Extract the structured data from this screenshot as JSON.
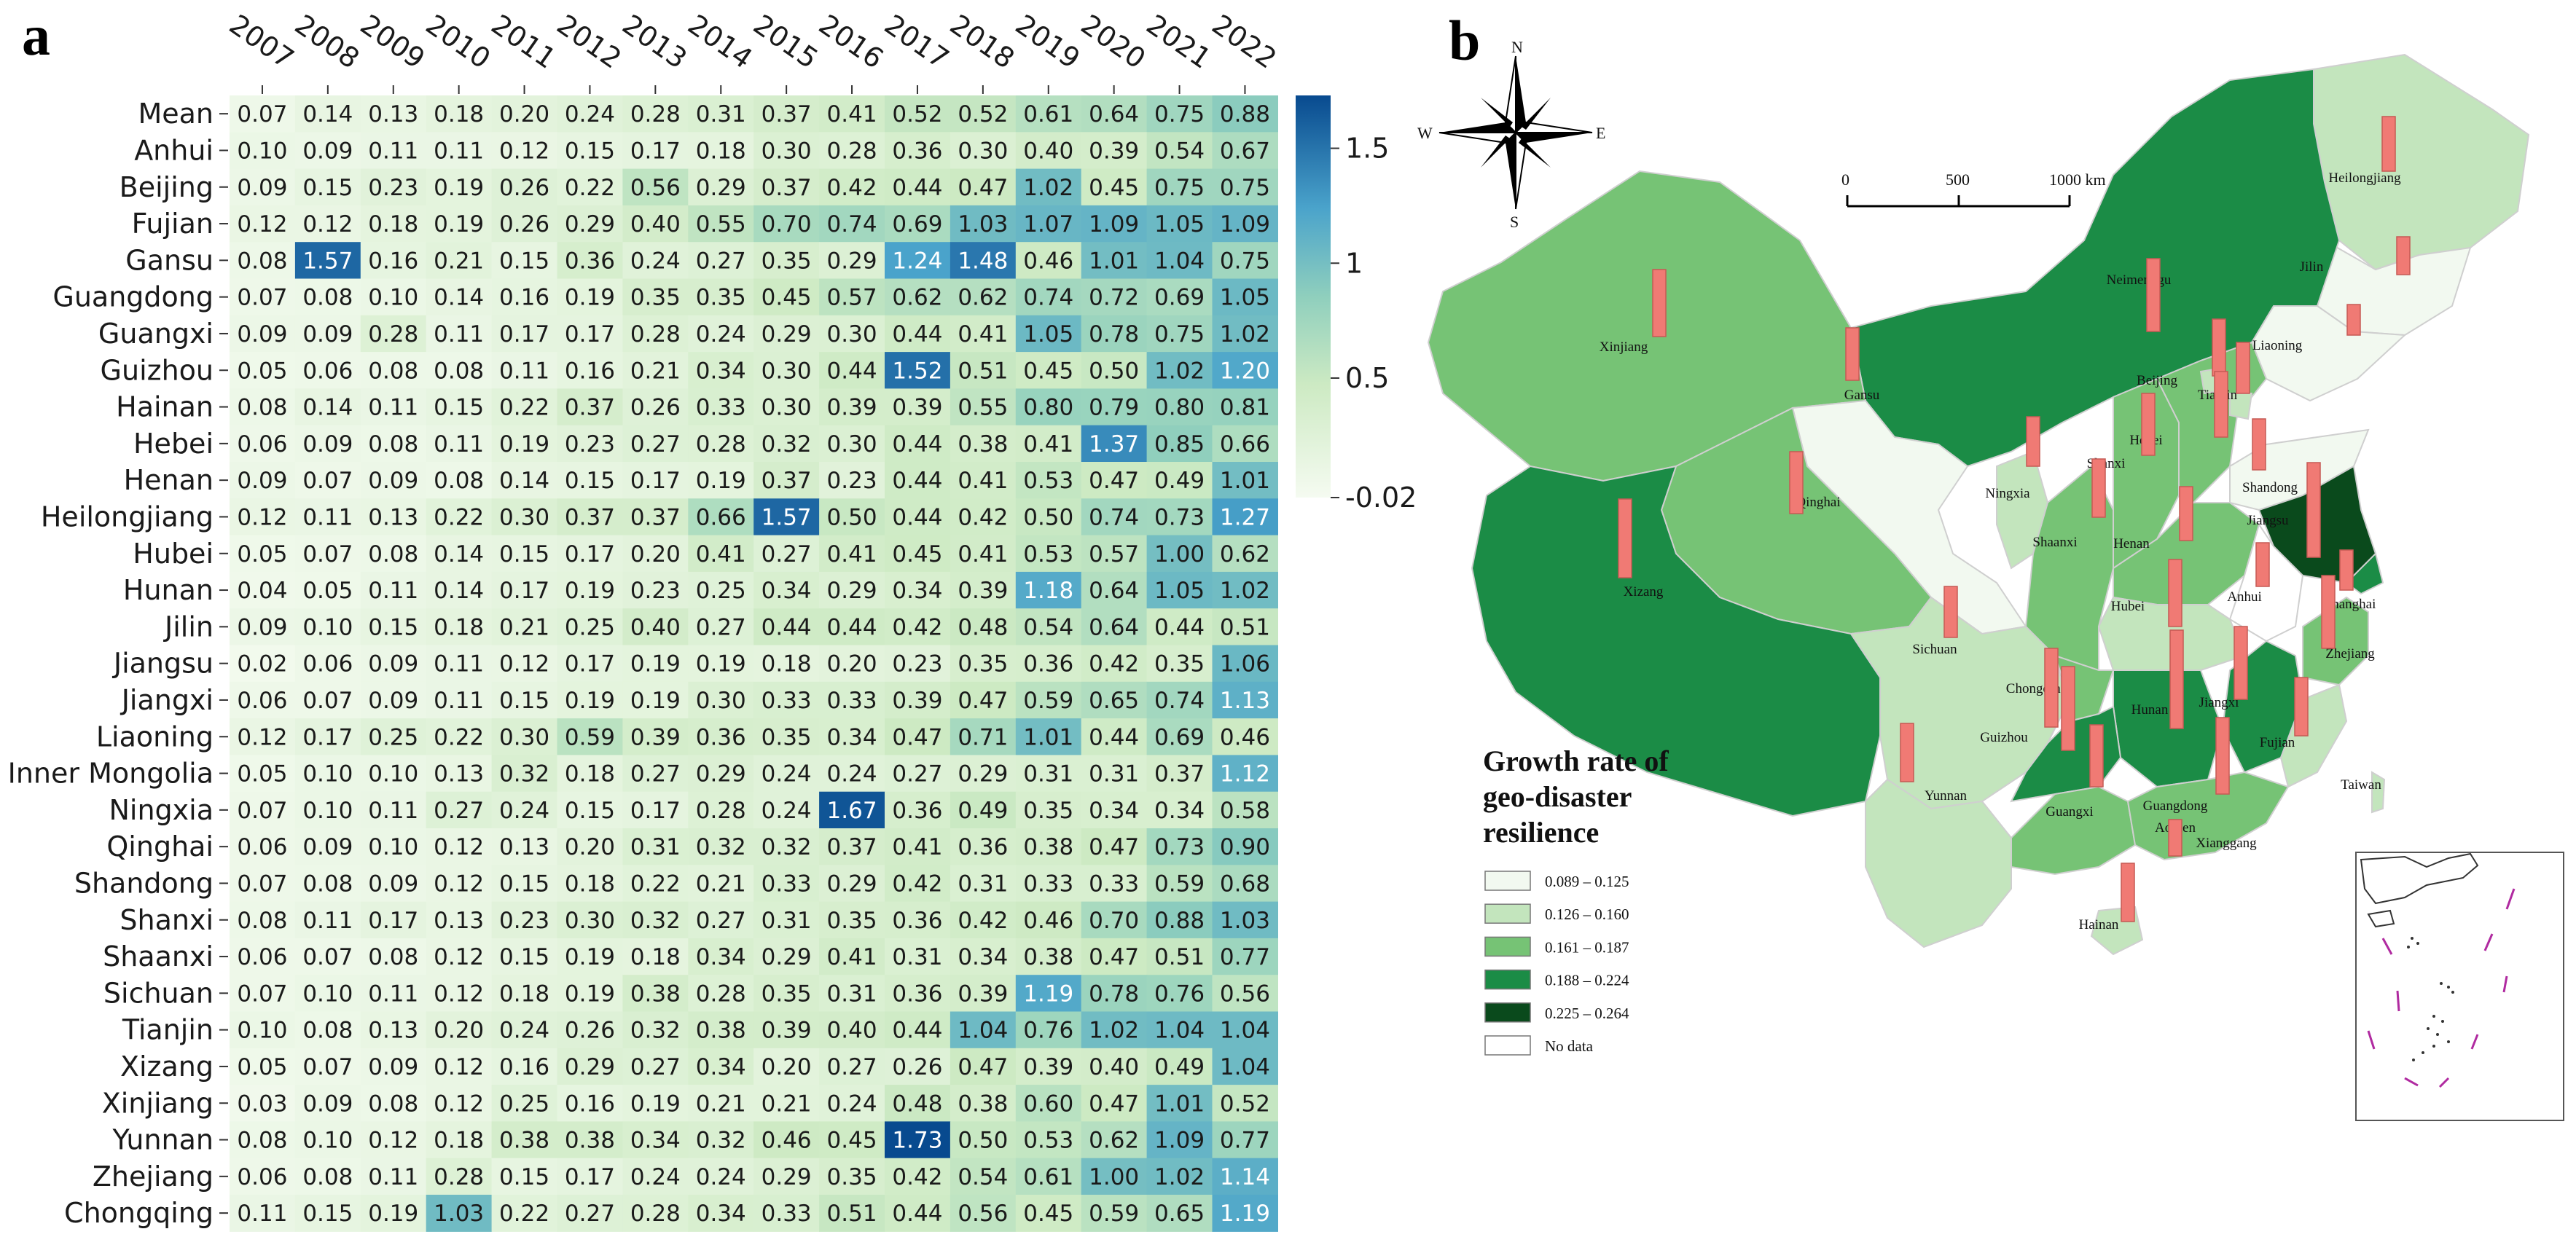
{
  "panel_a": {
    "label": "a"
  },
  "panel_b": {
    "label": "b",
    "compass": {
      "n": "N",
      "s": "S",
      "e": "E",
      "w": "W"
    },
    "scalebar": {
      "t0": "0",
      "t1": "500",
      "t2": "1000 km"
    },
    "legend": {
      "title_lines": [
        "Growth rate of",
        "geo-disaster",
        "resilience"
      ],
      "items": [
        {
          "label": "0.089 – 0.125",
          "color": "#f2f9f0"
        },
        {
          "label": "0.126 – 0.160",
          "color": "#c3e5bd"
        },
        {
          "label": "0.161 – 0.187",
          "color": "#76c375"
        },
        {
          "label": "0.188 – 0.224",
          "color": "#1b8c46"
        },
        {
          "label": "0.225 – 0.264",
          "color": "#0a4a1c"
        },
        {
          "label": "No data",
          "color": "#ffffff"
        }
      ]
    },
    "provinces": [
      {
        "name": "Heilongjiang"
      },
      {
        "name": "Jilin"
      },
      {
        "name": "Liaoning"
      },
      {
        "name": "Neimenggu"
      },
      {
        "name": "Xinjiang"
      },
      {
        "name": "Gansu"
      },
      {
        "name": "Beijing"
      },
      {
        "name": "Tianjin"
      },
      {
        "name": "Hebei"
      },
      {
        "name": "Ningxia"
      },
      {
        "name": "Shanxi"
      },
      {
        "name": "Shandong"
      },
      {
        "name": "Qinghai"
      },
      {
        "name": "Jiangsu"
      },
      {
        "name": "Henan"
      },
      {
        "name": "Shaanxi"
      },
      {
        "name": "Xizang"
      },
      {
        "name": "Anhui"
      },
      {
        "name": "Hubei"
      },
      {
        "name": "Shanghai"
      },
      {
        "name": "Sichuan"
      },
      {
        "name": "Zhejiang"
      },
      {
        "name": "Chongqing"
      },
      {
        "name": "Jiangxi"
      },
      {
        "name": "Hunan"
      },
      {
        "name": "Guizhou"
      },
      {
        "name": "Fujian"
      },
      {
        "name": "Yunnan"
      },
      {
        "name": "Taiwan"
      },
      {
        "name": "Guangxi"
      },
      {
        "name": "Guangdong"
      },
      {
        "name": "Aomen"
      },
      {
        "name": "Xianggang"
      },
      {
        "name": "Hainan"
      }
    ]
  },
  "chart_data": [
    {
      "type": "heatmap",
      "title": "",
      "x": [
        "2007",
        "2008",
        "2009",
        "2010",
        "2011",
        "2012",
        "2013",
        "2014",
        "2015",
        "2016",
        "2017",
        "2018",
        "2019",
        "2020",
        "2021",
        "2022"
      ],
      "y": [
        "Mean",
        "Anhui",
        "Beijing",
        "Fujian",
        "Gansu",
        "Guangdong",
        "Guangxi",
        "Guizhou",
        "Hainan",
        "Hebei",
        "Henan",
        "Heilongjiang",
        "Hubei",
        "Hunan",
        "Jilin",
        "Jiangsu",
        "Jiangxi",
        "Liaoning",
        "Inner Mongolia",
        "Ningxia",
        "Qinghai",
        "Shandong",
        "Shanxi",
        "Shaanxi",
        "Sichuan",
        "Tianjin",
        "Xizang",
        "Xinjiang",
        "Yunnan",
        "Zhejiang",
        "Chongqing"
      ],
      "values": [
        [
          "0.07",
          "0.14",
          "0.13",
          "0.18",
          "0.20",
          "0.24",
          "0.28",
          "0.31",
          "0.37",
          "0.41",
          "0.52",
          "0.52",
          "0.61",
          "0.64",
          "0.75",
          "0.88"
        ],
        [
          "0.10",
          "0.09",
          "0.11",
          "0.11",
          "0.12",
          "0.15",
          "0.17",
          "0.18",
          "0.30",
          "0.28",
          "0.36",
          "0.30",
          "0.40",
          "0.39",
          "0.54",
          "0.67"
        ],
        [
          "0.09",
          "0.15",
          "0.23",
          "0.19",
          "0.26",
          "0.22",
          "0.56",
          "0.29",
          "0.37",
          "0.42",
          "0.44",
          "0.47",
          "1.02",
          "0.45",
          "0.75",
          "0.75"
        ],
        [
          "0.12",
          "0.12",
          "0.18",
          "0.19",
          "0.26",
          "0.29",
          "0.40",
          "0.55",
          "0.70",
          "0.74",
          "0.69",
          "1.03",
          "1.07",
          "1.09",
          "1.05",
          "1.09"
        ],
        [
          "0.08",
          "1.57",
          "0.16",
          "0.21",
          "0.15",
          "0.36",
          "0.24",
          "0.27",
          "0.35",
          "0.29",
          "1.24",
          "1.48",
          "0.46",
          "1.01",
          "1.04",
          "0.75"
        ],
        [
          "0.07",
          "0.08",
          "0.10",
          "0.14",
          "0.16",
          "0.19",
          "0.35",
          "0.35",
          "0.45",
          "0.57",
          "0.62",
          "0.62",
          "0.74",
          "0.72",
          "0.69",
          "1.05"
        ],
        [
          "0.09",
          "0.09",
          "0.28",
          "0.11",
          "0.17",
          "0.17",
          "0.28",
          "0.24",
          "0.29",
          "0.30",
          "0.44",
          "0.41",
          "1.05",
          "0.78",
          "0.75",
          "1.02"
        ],
        [
          "0.05",
          "0.06",
          "0.08",
          "0.08",
          "0.11",
          "0.16",
          "0.21",
          "0.34",
          "0.30",
          "0.44",
          "1.52",
          "0.51",
          "0.45",
          "0.50",
          "1.02",
          "1.20"
        ],
        [
          "0.08",
          "0.14",
          "0.11",
          "0.15",
          "0.22",
          "0.37",
          "0.26",
          "0.33",
          "0.30",
          "0.39",
          "0.39",
          "0.55",
          "0.80",
          "0.79",
          "0.80",
          "0.81"
        ],
        [
          "0.06",
          "0.09",
          "0.08",
          "0.11",
          "0.19",
          "0.23",
          "0.27",
          "0.28",
          "0.32",
          "0.30",
          "0.44",
          "0.38",
          "0.41",
          "1.37",
          "0.85",
          "0.66"
        ],
        [
          "0.09",
          "0.07",
          "0.09",
          "0.08",
          "0.14",
          "0.15",
          "0.17",
          "0.19",
          "0.37",
          "0.23",
          "0.44",
          "0.41",
          "0.53",
          "0.47",
          "0.49",
          "1.01"
        ],
        [
          "0.12",
          "0.11",
          "0.13",
          "0.22",
          "0.30",
          "0.37",
          "0.37",
          "0.66",
          "1.57",
          "0.50",
          "0.44",
          "0.42",
          "0.50",
          "0.74",
          "0.73",
          "1.27"
        ],
        [
          "0.05",
          "0.07",
          "0.08",
          "0.14",
          "0.15",
          "0.17",
          "0.20",
          "0.41",
          "0.27",
          "0.41",
          "0.45",
          "0.41",
          "0.53",
          "0.57",
          "1.00",
          "0.62"
        ],
        [
          "0.04",
          "0.05",
          "0.11",
          "0.14",
          "0.17",
          "0.19",
          "0.23",
          "0.25",
          "0.34",
          "0.29",
          "0.34",
          "0.39",
          "1.18",
          "0.64",
          "1.05",
          "1.02"
        ],
        [
          "0.09",
          "0.10",
          "0.15",
          "0.18",
          "0.21",
          "0.25",
          "0.40",
          "0.27",
          "0.44",
          "0.44",
          "0.42",
          "0.48",
          "0.54",
          "0.64",
          "0.44",
          "0.51"
        ],
        [
          "0.02",
          "0.06",
          "0.09",
          "0.11",
          "0.12",
          "0.17",
          "0.19",
          "0.19",
          "0.18",
          "0.20",
          "0.23",
          "0.35",
          "0.36",
          "0.42",
          "0.35",
          "1.06"
        ],
        [
          "0.06",
          "0.07",
          "0.09",
          "0.11",
          "0.15",
          "0.19",
          "0.19",
          "0.30",
          "0.33",
          "0.33",
          "0.39",
          "0.47",
          "0.59",
          "0.65",
          "0.74",
          "1.13"
        ],
        [
          "0.12",
          "0.17",
          "0.25",
          "0.22",
          "0.30",
          "0.59",
          "0.39",
          "0.36",
          "0.35",
          "0.34",
          "0.47",
          "0.71",
          "1.01",
          "0.44",
          "0.69",
          "0.46"
        ],
        [
          "0.05",
          "0.10",
          "0.10",
          "0.13",
          "0.32",
          "0.18",
          "0.27",
          "0.29",
          "0.24",
          "0.24",
          "0.27",
          "0.29",
          "0.31",
          "0.31",
          "0.37",
          "1.12"
        ],
        [
          "0.07",
          "0.10",
          "0.11",
          "0.27",
          "0.24",
          "0.15",
          "0.17",
          "0.28",
          "0.24",
          "1.67",
          "0.36",
          "0.49",
          "0.35",
          "0.34",
          "0.34",
          "0.58"
        ],
        [
          "0.06",
          "0.09",
          "0.10",
          "0.12",
          "0.13",
          "0.20",
          "0.31",
          "0.32",
          "0.32",
          "0.37",
          "0.41",
          "0.36",
          "0.38",
          "0.47",
          "0.73",
          "0.90"
        ],
        [
          "0.07",
          "0.08",
          "0.09",
          "0.12",
          "0.15",
          "0.18",
          "0.22",
          "0.21",
          "0.33",
          "0.29",
          "0.42",
          "0.31",
          "0.33",
          "0.33",
          "0.59",
          "0.68"
        ],
        [
          "0.08",
          "0.11",
          "0.17",
          "0.13",
          "0.23",
          "0.30",
          "0.32",
          "0.27",
          "0.31",
          "0.35",
          "0.36",
          "0.42",
          "0.46",
          "0.70",
          "0.88",
          "1.03"
        ],
        [
          "0.06",
          "0.07",
          "0.08",
          "0.12",
          "0.15",
          "0.19",
          "0.18",
          "0.34",
          "0.29",
          "0.41",
          "0.31",
          "0.34",
          "0.38",
          "0.47",
          "0.51",
          "0.77"
        ],
        [
          "0.07",
          "0.10",
          "0.11",
          "0.12",
          "0.18",
          "0.19",
          "0.38",
          "0.28",
          "0.35",
          "0.31",
          "0.36",
          "0.39",
          "1.19",
          "0.78",
          "0.76",
          "0.56"
        ],
        [
          "0.10",
          "0.08",
          "0.13",
          "0.20",
          "0.24",
          "0.26",
          "0.32",
          "0.38",
          "0.39",
          "0.40",
          "0.44",
          "1.04",
          "0.76",
          "1.02",
          "1.04",
          "1.04"
        ],
        [
          "0.05",
          "0.07",
          "0.09",
          "0.12",
          "0.16",
          "0.29",
          "0.27",
          "0.34",
          "0.20",
          "0.27",
          "0.26",
          "0.47",
          "0.39",
          "0.40",
          "0.49",
          "1.04"
        ],
        [
          "0.03",
          "0.09",
          "0.08",
          "0.12",
          "0.25",
          "0.16",
          "0.19",
          "0.21",
          "0.21",
          "0.24",
          "0.48",
          "0.38",
          "0.60",
          "0.47",
          "1.01",
          "0.52"
        ],
        [
          "0.08",
          "0.10",
          "0.12",
          "0.18",
          "0.38",
          "0.38",
          "0.34",
          "0.32",
          "0.46",
          "0.45",
          "1.73",
          "0.50",
          "0.53",
          "0.62",
          "1.09",
          "0.77"
        ],
        [
          "0.06",
          "0.08",
          "0.11",
          "0.28",
          "0.15",
          "0.17",
          "0.24",
          "0.24",
          "0.29",
          "0.35",
          "0.42",
          "0.54",
          "0.61",
          "1.00",
          "1.02",
          "1.14"
        ],
        [
          "0.11",
          "0.15",
          "0.19",
          "1.03",
          "0.22",
          "0.27",
          "0.28",
          "0.34",
          "0.33",
          "0.51",
          "0.44",
          "0.56",
          "0.45",
          "0.59",
          "0.65",
          "1.19"
        ]
      ],
      "colorbar": {
        "ticks": [
          "1.5",
          "1",
          "0.5",
          "-0.02"
        ],
        "min": -0.02,
        "max": 1.73
      }
    }
  ]
}
